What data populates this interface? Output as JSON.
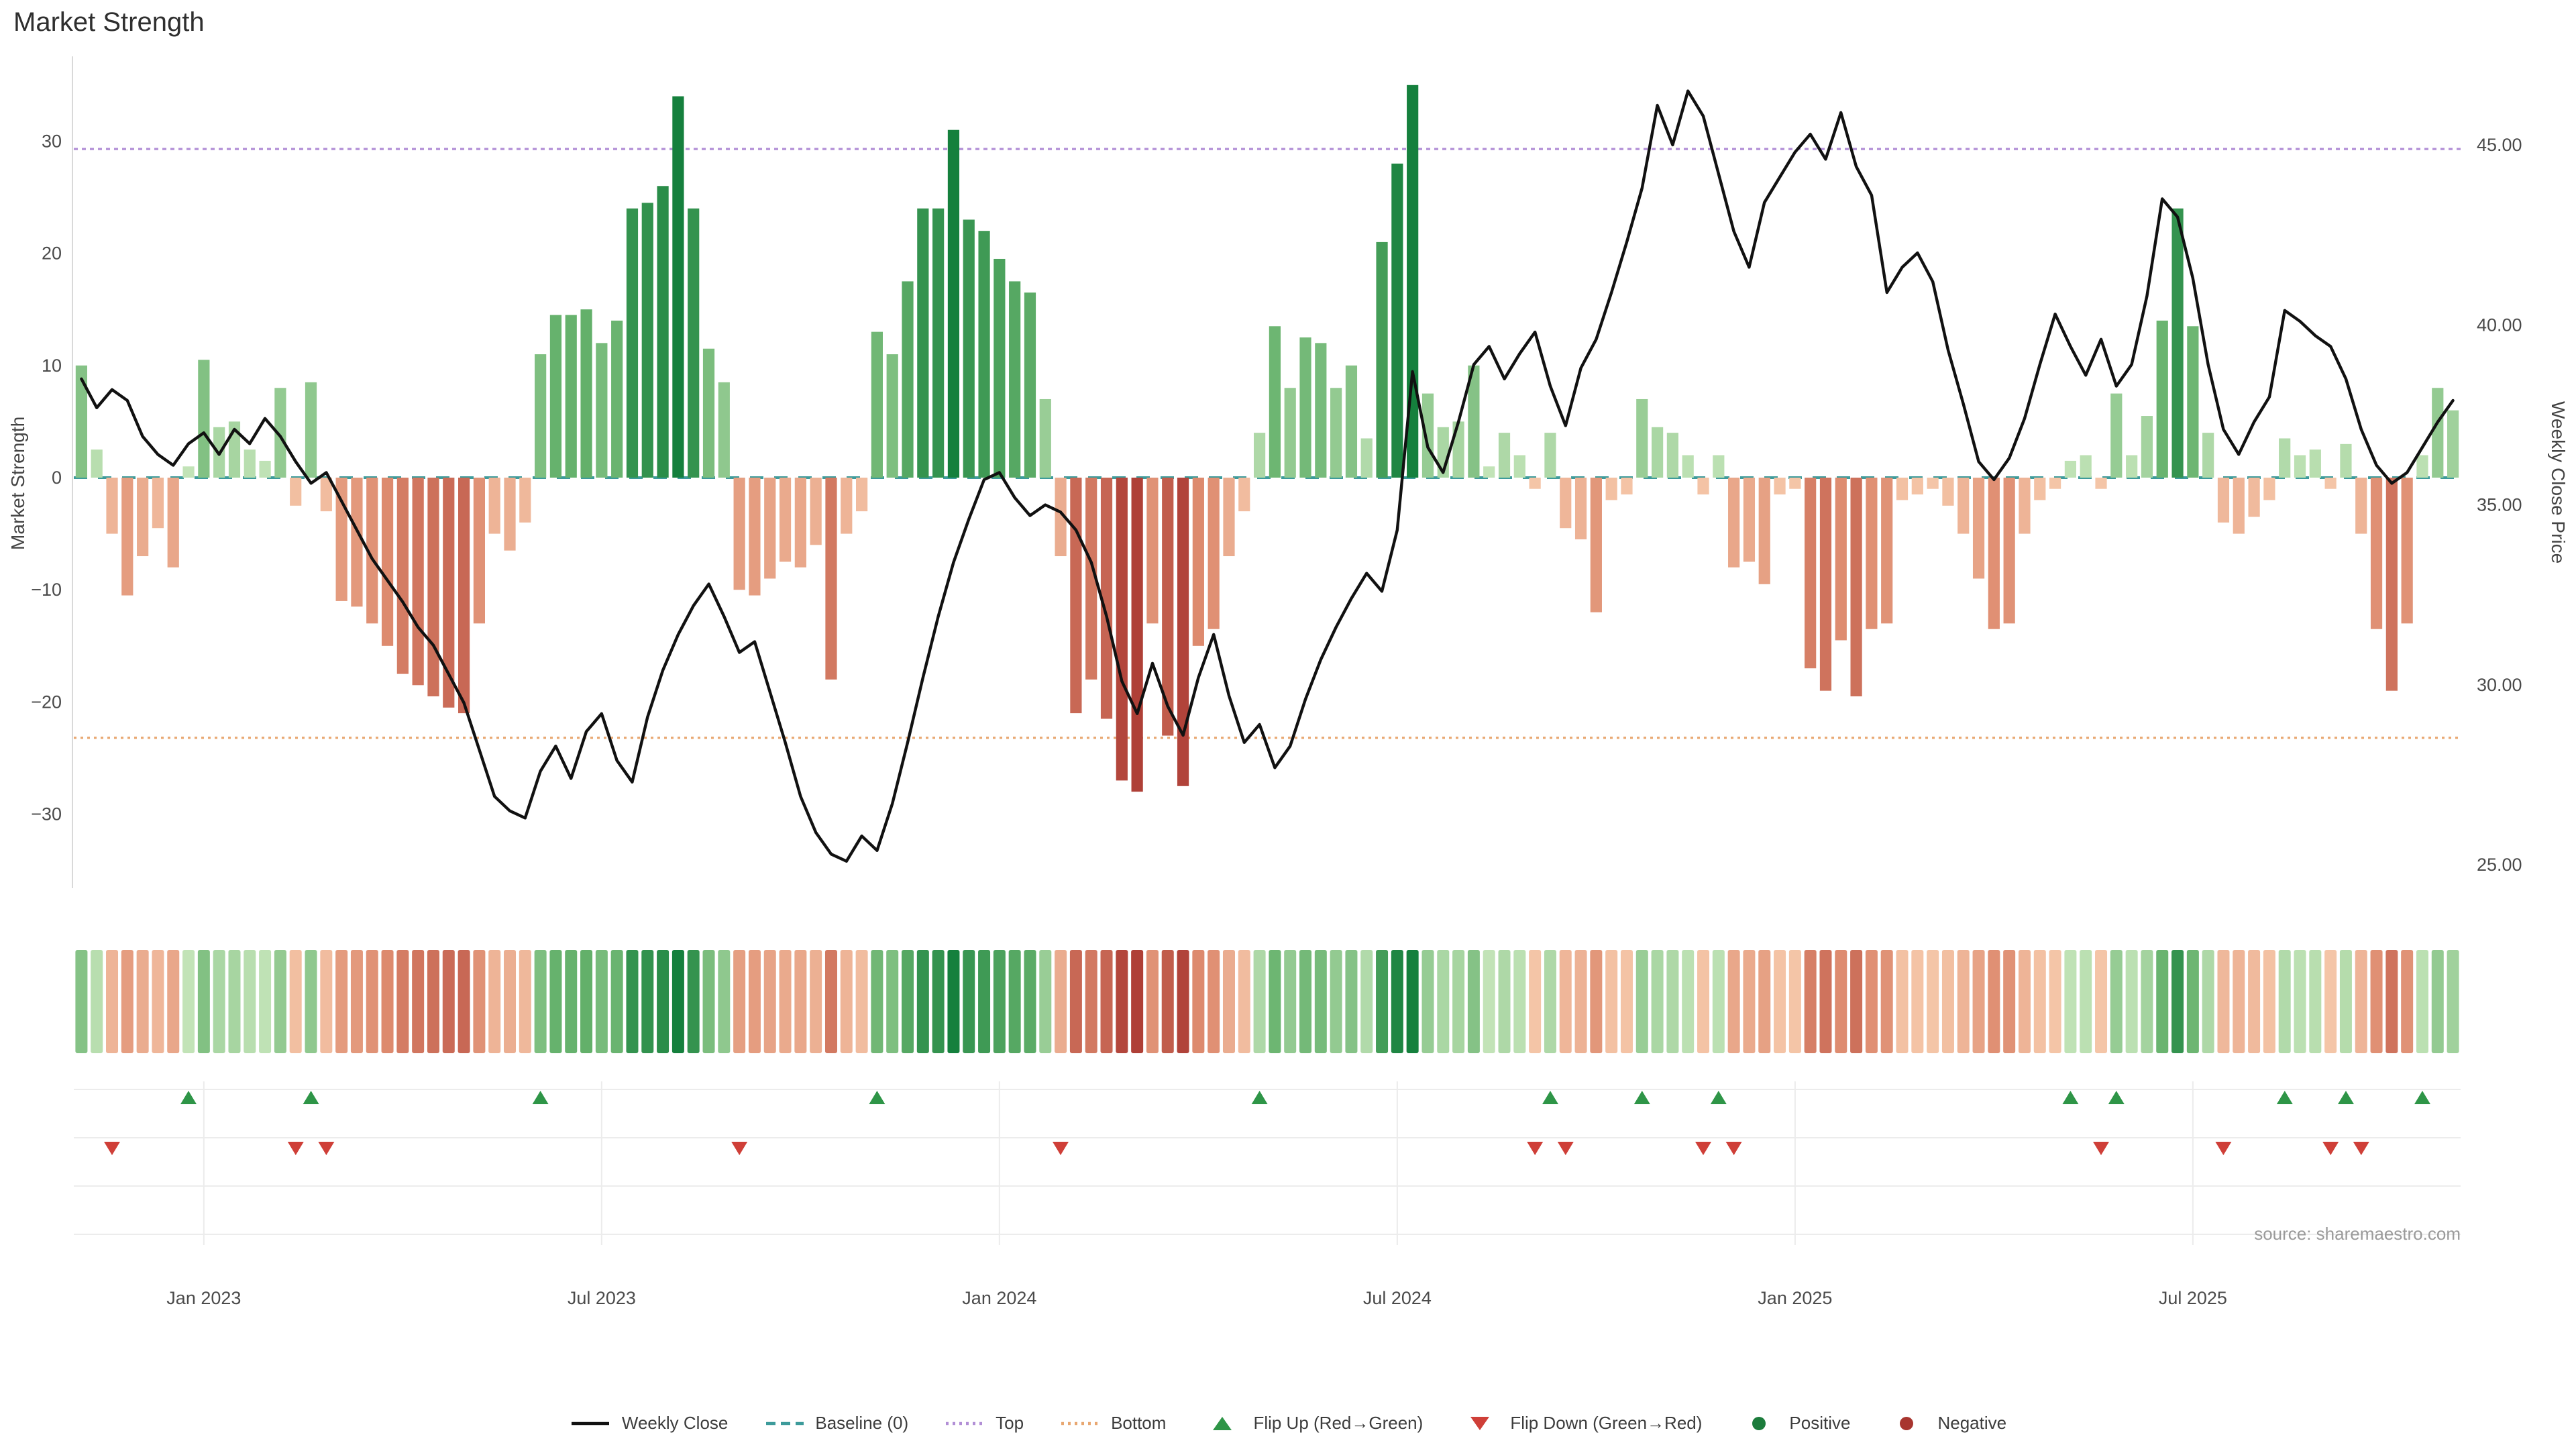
{
  "chart_data": {
    "type": "combo-bar-line",
    "title": "Market Strength",
    "weeks": 156,
    "x_axis": {
      "tick_labels": [
        "Jan 2023",
        "Jul 2023",
        "Jan 2024",
        "Jul 2024",
        "Jan 2025",
        "Jul 2025"
      ],
      "tick_weeks": [
        8,
        34,
        60,
        86,
        112,
        138
      ]
    },
    "left_axis": {
      "label": "Market Strength",
      "ticks": [
        -30,
        -20,
        -10,
        0,
        10,
        20,
        30
      ],
      "range": [
        -37,
        38
      ]
    },
    "right_axis": {
      "label": "Weekly Close Price",
      "ticks": [
        25,
        30,
        35,
        40,
        45
      ],
      "range": [
        24.3,
        47.6
      ]
    },
    "reference_lines": {
      "baseline": 0,
      "top": 29.3,
      "bottom": -23.2
    },
    "series": [
      {
        "name": "Market Strength",
        "type": "bar",
        "values": [
          10,
          2.5,
          -5,
          -10.5,
          -7,
          -4.5,
          -8,
          1,
          10.5,
          4.5,
          5,
          2.5,
          1.5,
          8,
          -2.5,
          8.5,
          -3,
          -11,
          -11.5,
          -13,
          -15,
          -17.5,
          -18.5,
          -19.5,
          -20.5,
          -21,
          -13,
          -5,
          -6.5,
          -4,
          11,
          14.5,
          14.5,
          15,
          12,
          14,
          24,
          24.5,
          26,
          34,
          24,
          11.5,
          8.5,
          -10,
          -10.5,
          -9,
          -7.5,
          -8,
          -6,
          -18,
          -5,
          -3,
          13,
          11,
          17.5,
          24,
          24,
          31,
          23,
          22,
          19.5,
          17.5,
          16.5,
          7,
          -7,
          -21,
          -18,
          -21.5,
          -27,
          -28,
          -13,
          -23,
          -27.5,
          -15,
          -13.5,
          -7,
          -3,
          4,
          13.5,
          8,
          12.5,
          12,
          8,
          10,
          3.5,
          21,
          28,
          35,
          7.5,
          4.5,
          5,
          10,
          1,
          4,
          2,
          -1,
          4,
          -4.5,
          -5.5,
          -12,
          -2,
          -1.5,
          7,
          4.5,
          4,
          2,
          -1.5,
          2,
          -8,
          -7.5,
          -9.5,
          -1.5,
          -1,
          -17,
          -19,
          -14.5,
          -19.5,
          -13.5,
          -13,
          -2,
          -1.5,
          -1,
          -2.5,
          -5,
          -9,
          -13.5,
          -13,
          -5,
          -2,
          -1,
          1.5,
          2,
          -1,
          7.5,
          2,
          5.5,
          14,
          24,
          13.5,
          4,
          -4,
          -5,
          -3.5,
          -2,
          3.5,
          2,
          2.5,
          -1,
          3,
          -5,
          -13.5,
          -19,
          -13,
          2,
          8,
          6
        ]
      },
      {
        "name": "Weekly Close",
        "type": "line",
        "values": [
          38.5,
          37.7,
          38.2,
          37.9,
          36.9,
          36.4,
          36.1,
          36.7,
          37.0,
          36.4,
          37.1,
          36.7,
          37.4,
          36.9,
          36.2,
          35.6,
          35.9,
          35.1,
          34.3,
          33.5,
          32.9,
          32.3,
          31.6,
          31.1,
          30.3,
          29.5,
          28.2,
          26.9,
          26.5,
          26.3,
          27.6,
          28.3,
          27.4,
          28.7,
          29.2,
          27.9,
          27.3,
          29.1,
          30.4,
          31.4,
          32.2,
          32.8,
          31.9,
          30.9,
          31.2,
          29.8,
          28.4,
          26.9,
          25.9,
          25.3,
          25.1,
          25.8,
          25.4,
          26.7,
          28.4,
          30.2,
          31.9,
          33.4,
          34.6,
          35.7,
          35.9,
          35.2,
          34.7,
          35.0,
          34.8,
          34.3,
          33.4,
          31.9,
          30.1,
          29.2,
          30.6,
          29.4,
          28.6,
          30.2,
          31.4,
          29.7,
          28.4,
          28.9,
          27.7,
          28.3,
          29.6,
          30.7,
          31.6,
          32.4,
          33.1,
          32.6,
          34.3,
          38.7,
          36.6,
          35.9,
          37.3,
          38.9,
          39.4,
          38.5,
          39.2,
          39.8,
          38.3,
          37.2,
          38.8,
          39.6,
          40.9,
          42.3,
          43.8,
          46.1,
          45.0,
          46.5,
          45.8,
          44.2,
          42.6,
          41.6,
          43.4,
          44.1,
          44.8,
          45.3,
          44.6,
          45.9,
          44.4,
          43.6,
          40.9,
          41.6,
          42.0,
          41.2,
          39.3,
          37.8,
          36.2,
          35.7,
          36.3,
          37.4,
          38.9,
          40.3,
          39.4,
          38.6,
          39.6,
          38.3,
          38.9,
          40.8,
          43.5,
          43.0,
          41.3,
          38.9,
          37.1,
          36.4,
          37.3,
          38.0,
          40.4,
          40.1,
          39.7,
          39.4,
          38.5,
          37.1,
          36.1,
          35.6,
          35.9,
          36.6,
          37.3,
          37.9
        ]
      }
    ],
    "flip_up_weeks": [
      7,
      15,
      30,
      52,
      77,
      96,
      102,
      107,
      130,
      133,
      144,
      148,
      153
    ],
    "flip_down_weeks": [
      2,
      14,
      16,
      43,
      64,
      95,
      97,
      106,
      108,
      132,
      140,
      147,
      149
    ],
    "source_text": "source: sharemaestro.com",
    "layout_hints": {
      "grid": "marker-panel-only",
      "legend_position": "bottom-center",
      "heat_strip": "weekly strength colors"
    }
  },
  "legend": {
    "items": [
      {
        "label": "Weekly Close",
        "swatch": "line-solid",
        "color": "#111111"
      },
      {
        "label": "Baseline (0)",
        "swatch": "line-dash",
        "color": "#3d9b9b"
      },
      {
        "label": "Top",
        "swatch": "line-dot",
        "color": "#b28fd6"
      },
      {
        "label": "Bottom",
        "swatch": "line-dot",
        "color": "#e8a771"
      },
      {
        "label": "Flip Up (Red→Green)",
        "swatch": "triangle-up",
        "color": "#2e9547"
      },
      {
        "label": "Flip Down (Green→Red)",
        "swatch": "triangle-down",
        "color": "#cf3f38"
      },
      {
        "label": "Positive",
        "swatch": "dot",
        "color": "#1c7c3c"
      },
      {
        "label": "Negative",
        "swatch": "dot",
        "color": "#a8352f"
      }
    ]
  },
  "colors": {
    "pos_weak": "#c9e7bd",
    "pos_mid": "#63b06a",
    "pos_strong": "#15803d",
    "neg_weak": "#f6c9ab",
    "neg_mid": "#dd8a6e",
    "neg_strong": "#a8352f",
    "line": "#111111",
    "baseline": "#3d9b9b",
    "top_line": "#b28fd6",
    "bottom_line": "#e8a771",
    "flip_up": "#2e9547",
    "flip_down": "#cf3f38",
    "grid": "#ececec",
    "spine": "#d9d9d9",
    "tick_text": "#4a4a4a",
    "source_text": "#9a9a9a"
  }
}
